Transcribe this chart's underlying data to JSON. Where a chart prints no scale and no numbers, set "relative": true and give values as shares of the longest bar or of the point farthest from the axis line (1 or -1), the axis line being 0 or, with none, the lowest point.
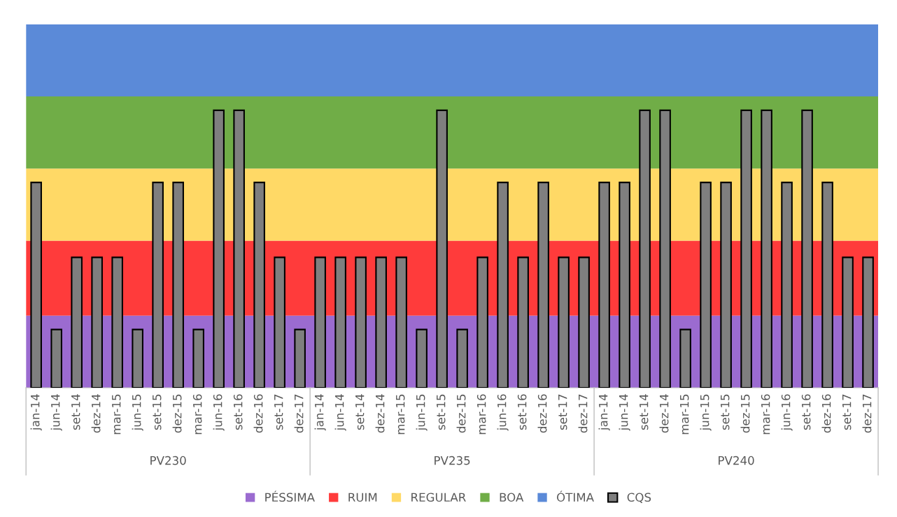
{
  "chart_data": {
    "type": "bar",
    "relative": true,
    "legend": "bottom",
    "categories": [
      "jan-14",
      "jun-14",
      "set-14",
      "dez-14",
      "mar-15",
      "jun-15",
      "set-15",
      "dez-15",
      "mar-16",
      "jun-16",
      "set-16",
      "dez-16",
      "set-17",
      "dez-17",
      "jan-14",
      "jun-14",
      "set-14",
      "dez-14",
      "mar-15",
      "jun-15",
      "set-15",
      "dez-15",
      "mar-16",
      "jun-16",
      "set-16",
      "dez-16",
      "set-17",
      "dez-17",
      "jan-14",
      "jun-14",
      "set-14",
      "dez-14",
      "mar-15",
      "jun-15",
      "set-15",
      "dez-15",
      "mar-16",
      "jun-16",
      "set-16",
      "dez-16",
      "set-17",
      "dez-17"
    ],
    "annotations": [
      "PV230",
      "PV235",
      "PV240"
    ],
    "bands": [
      {
        "axis": "y",
        "from": 0,
        "to": 0.26,
        "label": "PÉSSIMA",
        "color": "#9b6bd0"
      },
      {
        "axis": "y",
        "from": 0.26,
        "to": 0.53,
        "label": "RUIM",
        "color": "#ff3b3b"
      },
      {
        "axis": "y",
        "from": 0.53,
        "to": 0.79,
        "label": "REGULAR",
        "color": "#ffd966"
      },
      {
        "axis": "y",
        "from": 0.79,
        "to": 1.05,
        "label": "BOA",
        "color": "#70ad47"
      },
      {
        "axis": "y",
        "from": 1.05,
        "to": 1.31,
        "label": "ÓTIMA",
        "color": "#5b8ad8"
      }
    ],
    "series": [
      {
        "name": "CQS",
        "color": "#7f7f7f",
        "values": [
          0.74,
          0.21,
          0.47,
          0.47,
          0.47,
          0.21,
          0.74,
          0.74,
          0.21,
          1,
          1,
          0.74,
          0.47,
          0.21,
          0.47,
          0.47,
          0.47,
          0.47,
          0.47,
          0.21,
          1,
          0.21,
          0.47,
          0.74,
          0.47,
          0.74,
          0.47,
          0.47,
          0.74,
          0.74,
          1,
          1,
          0.21,
          0.74,
          0.74,
          1,
          1,
          0.74,
          1,
          0.74,
          0.47,
          0.47
        ]
      }
    ]
  }
}
